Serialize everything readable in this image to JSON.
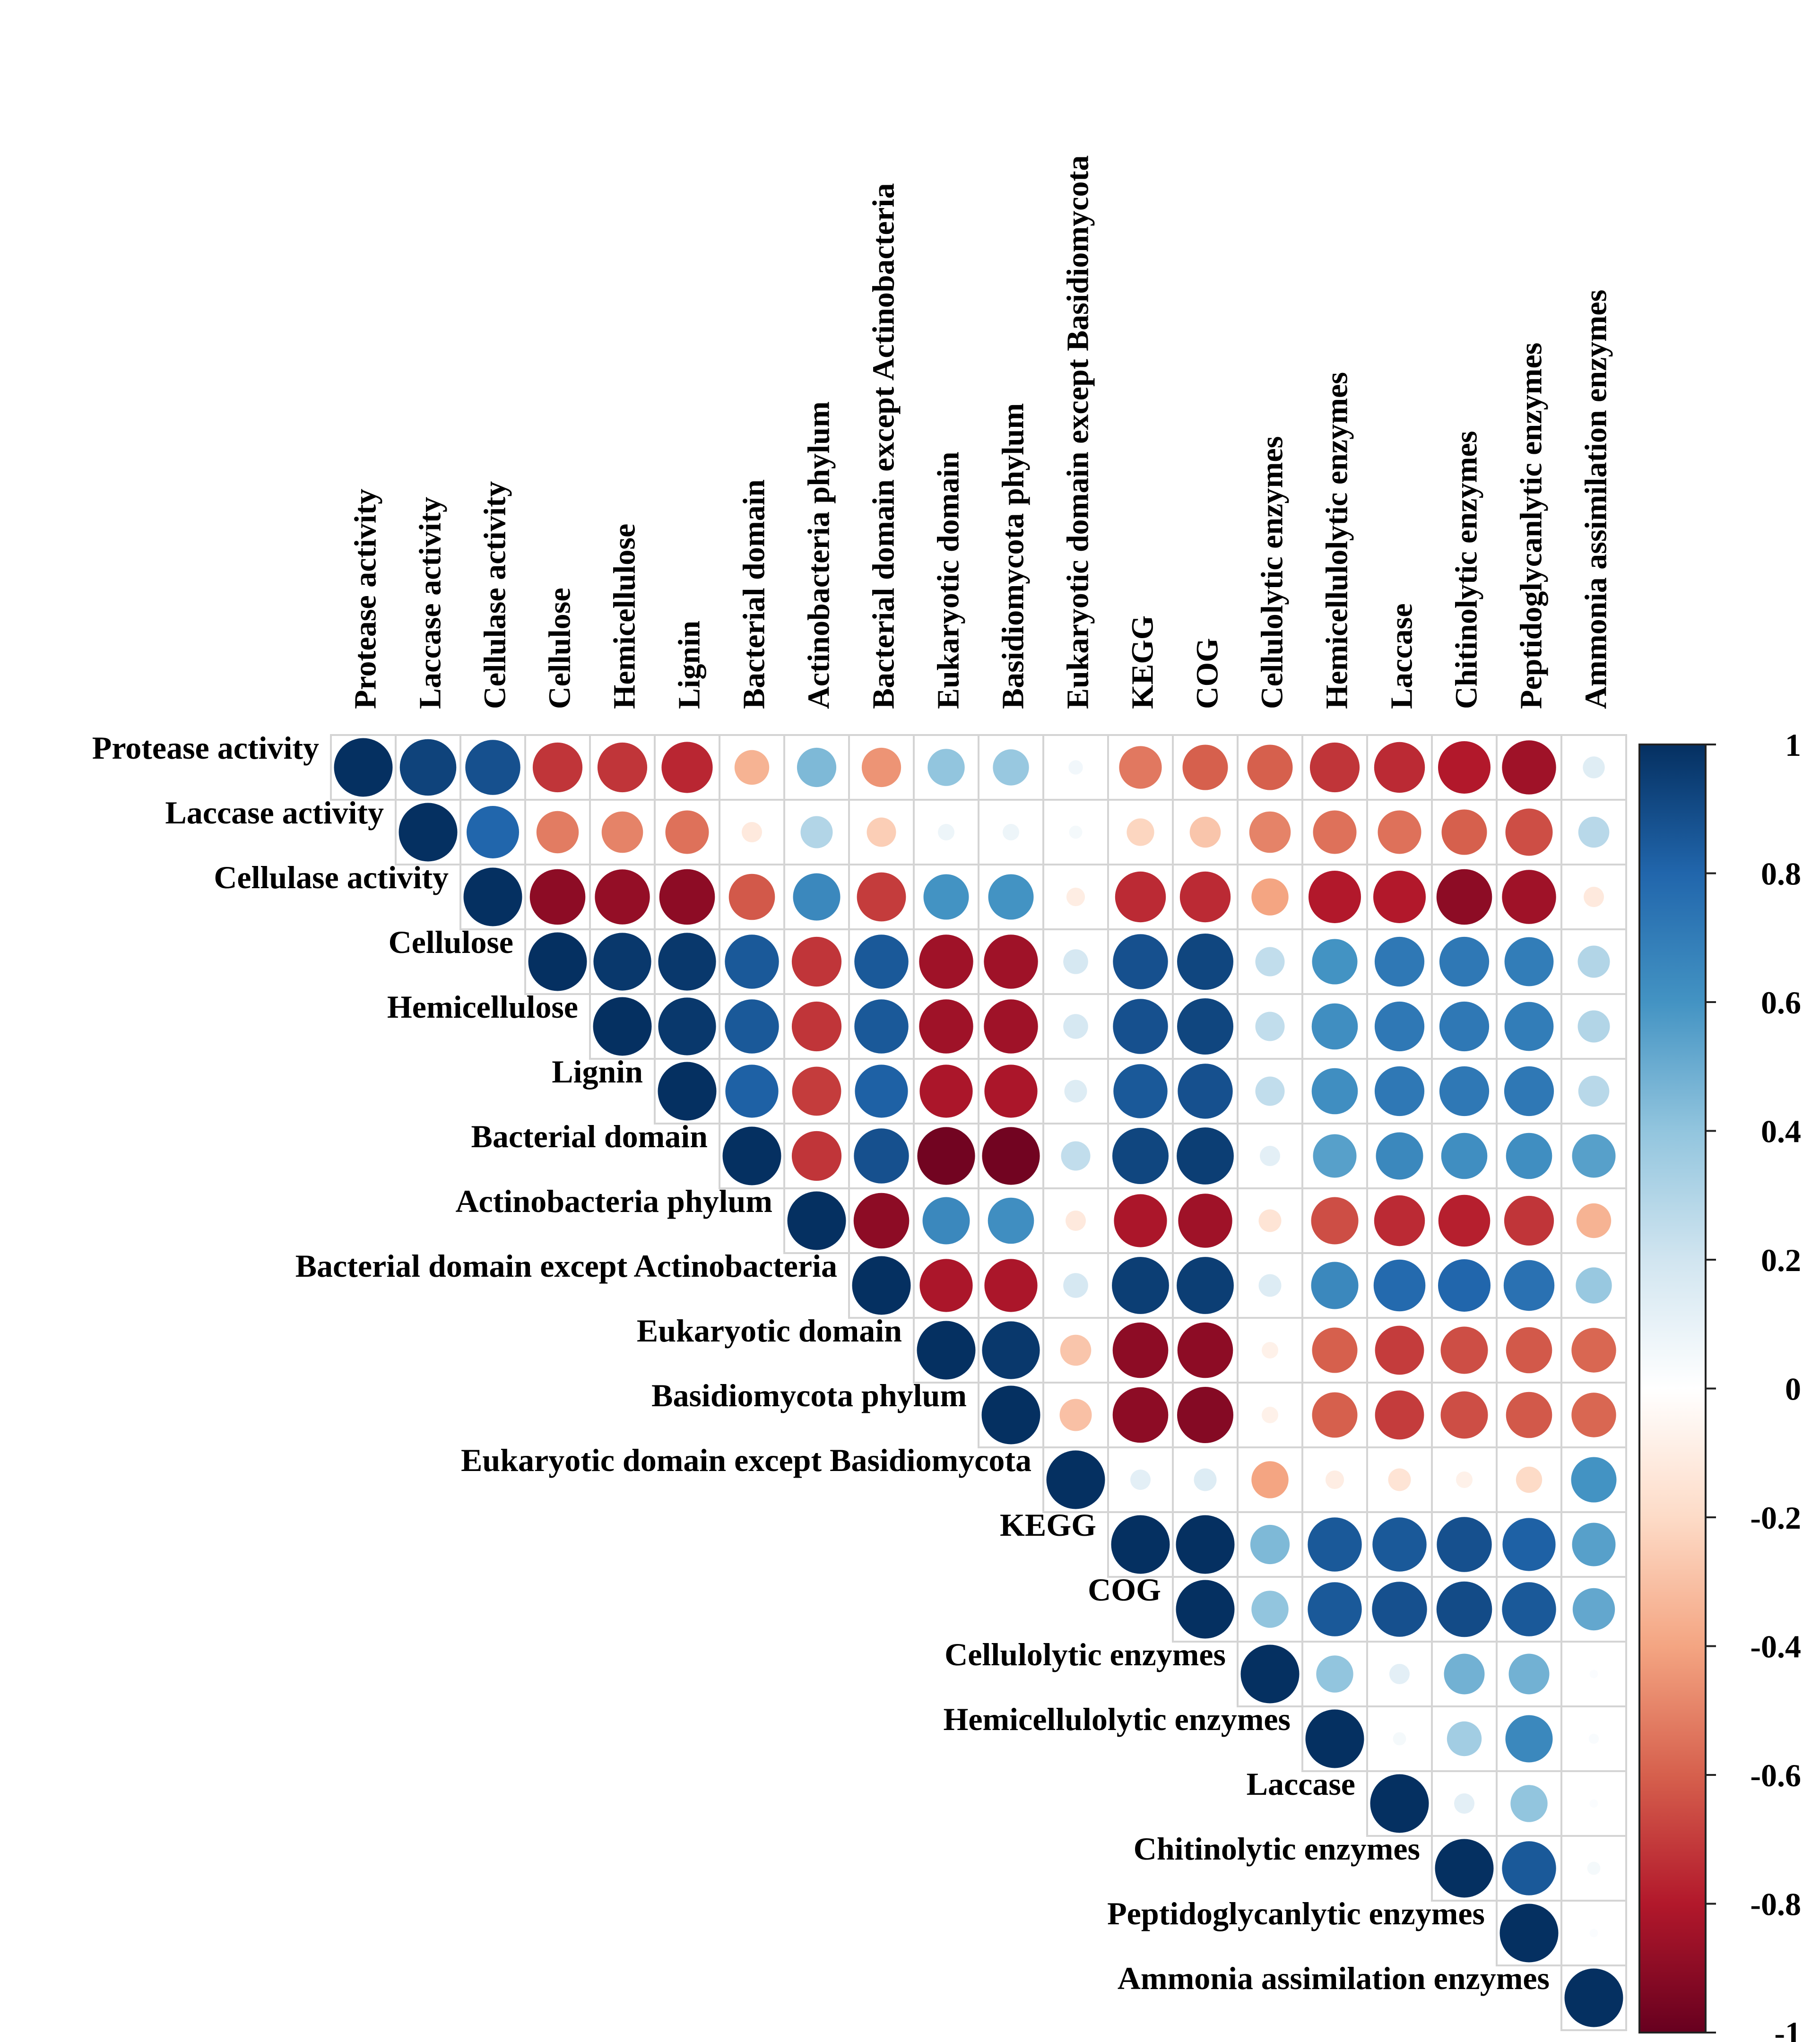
{
  "chart_data": {
    "type": "heatmap",
    "style": "correlation circles, upper triangle",
    "variables": [
      "Protease activity",
      "Laccase activity",
      "Cellulase activity",
      "Cellulose",
      "Hemicellulose",
      "Lignin",
      "Bacterial domain",
      "Actinobacteria phylum",
      "Bacterial domain except Actinobacteria",
      "Eukaryotic domain",
      "Basidiomycota phylum",
      "Eukaryotic domain except Basidiomycota",
      "KEGG",
      "COG",
      "Cellulolytic enzymes",
      "Hemicellulolytic enzymes",
      "Laccase",
      "Chitinolytic enzymes",
      "Peptidoglycanlytic enzymes",
      "Ammonia assimilation enzymes"
    ],
    "matrix_upper": [
      [
        1,
        0.93,
        0.88,
        -0.72,
        -0.72,
        -0.76,
        -0.35,
        0.45,
        -0.45,
        0.4,
        0.38,
        0.06,
        -0.53,
        -0.6,
        -0.6,
        -0.72,
        -0.75,
        -0.8,
        -0.85,
        0.14
      ],
      [
        1,
        0.8,
        -0.52,
        -0.5,
        -0.55,
        -0.12,
        0.3,
        -0.25,
        0.08,
        0.08,
        0.05,
        -0.22,
        -0.28,
        -0.5,
        -0.55,
        -0.55,
        -0.6,
        -0.65,
        0.28
      ],
      [
        1,
        -0.9,
        -0.88,
        -0.9,
        -0.62,
        0.65,
        -0.7,
        0.6,
        0.6,
        -0.1,
        -0.75,
        -0.75,
        -0.4,
        -0.8,
        -0.8,
        -0.9,
        -0.85,
        -0.12
      ],
      [
        1,
        0.97,
        0.97,
        0.85,
        -0.72,
        0.85,
        -0.85,
        -0.85,
        0.18,
        0.88,
        0.92,
        0.25,
        0.6,
        0.72,
        0.72,
        0.7,
        0.3
      ],
      [
        1,
        0.97,
        0.85,
        -0.72,
        0.85,
        -0.85,
        -0.85,
        0.18,
        0.88,
        0.92,
        0.25,
        0.62,
        0.72,
        0.72,
        0.7,
        0.3
      ],
      [
        1,
        0.82,
        -0.7,
        0.82,
        -0.82,
        -0.82,
        0.15,
        0.85,
        0.88,
        0.25,
        0.62,
        0.72,
        0.72,
        0.72,
        0.28
      ],
      [
        1,
        -0.72,
        0.88,
        -0.97,
        -0.97,
        0.25,
        0.92,
        0.95,
        0.12,
        0.55,
        0.65,
        0.62,
        0.62,
        0.55
      ],
      [
        1,
        -0.9,
        0.65,
        0.62,
        -0.12,
        -0.82,
        -0.85,
        -0.15,
        -0.65,
        -0.75,
        -0.78,
        -0.72,
        -0.35
      ],
      [
        1,
        -0.82,
        -0.82,
        0.18,
        0.95,
        0.95,
        0.15,
        0.65,
        0.78,
        0.8,
        0.75,
        0.38
      ],
      [
        1,
        0.97,
        -0.28,
        -0.9,
        -0.9,
        -0.08,
        -0.6,
        -0.7,
        -0.65,
        -0.62,
        -0.58
      ],
      [
        1,
        -0.3,
        -0.9,
        -0.92,
        -0.08,
        -0.6,
        -0.7,
        -0.65,
        -0.62,
        -0.58
      ],
      [
        1,
        0.12,
        0.15,
        -0.4,
        -0.1,
        -0.15,
        -0.08,
        -0.2,
        0.6
      ],
      [
        1,
        1.0,
        0.45,
        0.85,
        0.85,
        0.88,
        0.82,
        0.55
      ],
      [
        1,
        0.4,
        0.85,
        0.88,
        0.9,
        0.85,
        0.52
      ],
      [
        1,
        0.4,
        0.12,
        0.48,
        0.48,
        0.02
      ],
      [
        1,
        0.05,
        0.35,
        0.65,
        0.03
      ],
      [
        1,
        0.12,
        0.4,
        0.02
      ],
      [
        1,
        0.85,
        0.05
      ],
      [
        1,
        0.02
      ],
      [
        1
      ]
    ],
    "colorbar": {
      "range": [
        -1,
        1
      ],
      "ticks": [
        "1",
        "0.8",
        "0.6",
        "0.4",
        "0.2",
        "0",
        "-0.2",
        "-0.4",
        "-0.6",
        "-0.8",
        "-1"
      ],
      "colors": [
        "#67001F",
        "#B2182B",
        "#D6604D",
        "#F4A582",
        "#FDDBC7",
        "#FFFFFF",
        "#D1E5F0",
        "#92C5DE",
        "#4393C3",
        "#2166AC",
        "#053061"
      ]
    }
  }
}
